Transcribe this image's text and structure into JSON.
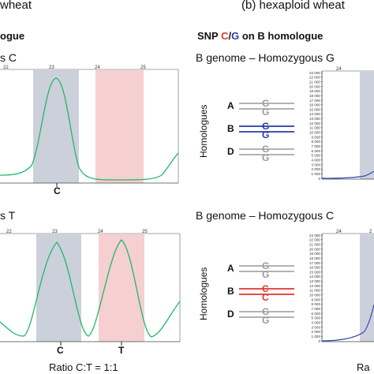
{
  "panel_a": {
    "title_fragment": "wheat",
    "subtitle_fragment": "ogue",
    "row1_label": "s C",
    "row2_label": "s T",
    "ticks_top": [
      "22",
      "23",
      "24",
      "25"
    ],
    "ticks_bottom": [
      "22",
      "23",
      "24",
      "25"
    ],
    "row1_peak_label": "C",
    "row2_peak_labels": [
      "C",
      "T"
    ],
    "ratio_label": "Ratio C:T = 1:1"
  },
  "panel_b": {
    "title": "(b) hexaploid wheat",
    "subtitle_prefix": "SNP ",
    "subtitle_c": "C",
    "subtitle_slash": "/",
    "subtitle_g": "G",
    "subtitle_suffix": " on B homologue",
    "row1_title": "B genome – Homozygous G",
    "row2_title": "B genome – Homozygous C",
    "homologues_axis": "Homologues",
    "row1_genomes": [
      {
        "name": "A",
        "letters": [
          "G",
          "G"
        ],
        "color": "#9a9a9a"
      },
      {
        "name": "B",
        "letters": [
          "G",
          "G"
        ],
        "color": "#2a3aa8"
      },
      {
        "name": "D",
        "letters": [
          "G",
          "G"
        ],
        "color": "#9a9a9a"
      }
    ],
    "row2_genomes": [
      {
        "name": "A",
        "letters": [
          "G",
          "G"
        ],
        "color": "#9a9a9a"
      },
      {
        "name": "B",
        "letters": [
          "C",
          "C"
        ],
        "color": "#e2352a"
      },
      {
        "name": "D",
        "letters": [
          "G",
          "G"
        ],
        "color": "#9a9a9a"
      }
    ],
    "row1_y_ticks": [
      "23 000",
      "22 000",
      "21 000",
      "20 000",
      "19 000",
      "18 000",
      "17 000",
      "16 000",
      "15 000",
      "14 000",
      "13 000",
      "12 000",
      "11 000",
      "10 000",
      "9 000",
      "8 000",
      "7 000",
      "6 000",
      "5 000",
      "4 000",
      "3 000",
      "2 000",
      "1 000",
      "0"
    ],
    "row2_y_ticks": [
      "23 000",
      "22 000",
      "21 000",
      "20 000",
      "19 000",
      "18 000",
      "17 000",
      "16 000",
      "15 000",
      "14 000",
      "13 000",
      "12 000",
      "11 000",
      "10 000",
      "9 000",
      "8 000",
      "7 000",
      "6 000",
      "5 000",
      "4 000",
      "3 000",
      "2 000",
      "1 000",
      "0"
    ],
    "row1_x_tick": "24",
    "row2_x_tick": "24",
    "row2_x_tick2": "2",
    "bottom_fragment": "Ra"
  },
  "colors": {
    "trace_green": "#1fb86a",
    "trace_blue": "#3a4ab0",
    "band_grey": "#ccd0da",
    "band_pink": "#f6cfd0",
    "snp_red": "#e2352a",
    "snp_blue": "#2a3aa8",
    "homologue_grey": "#9a9a9a"
  }
}
